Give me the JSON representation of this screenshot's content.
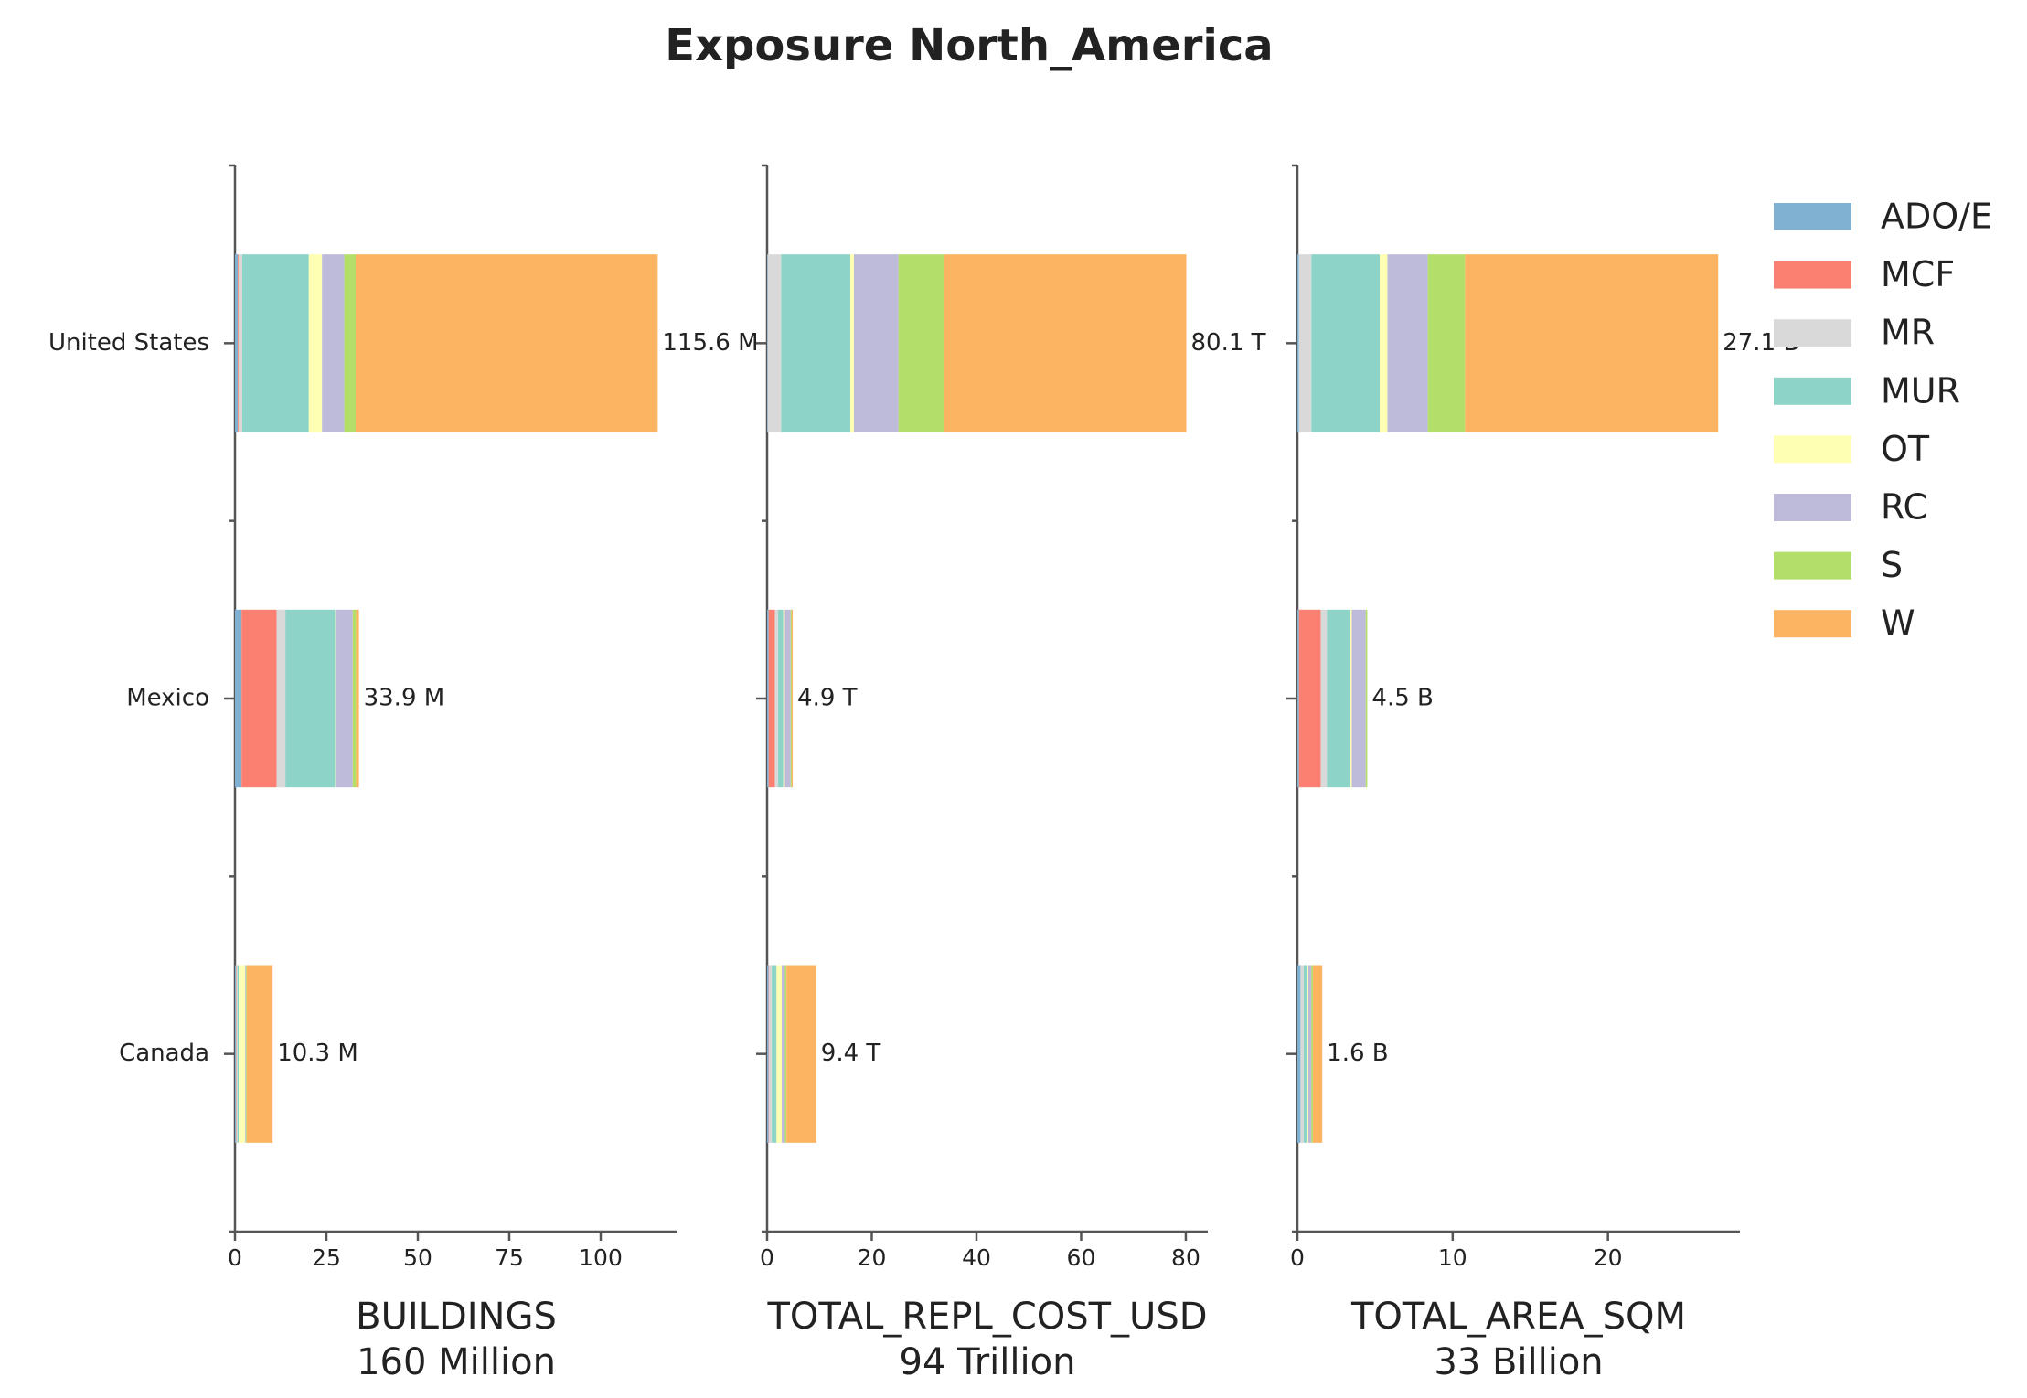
{
  "title": "Exposure North_America",
  "chart_data": [
    {
      "type": "barh-stacked",
      "xlabel": "BUILDINGS",
      "xlabel_total": "160 Million",
      "categories": [
        "United States",
        "Mexico",
        "Canada"
      ],
      "series": [
        {
          "name": "ADO/E",
          "color": "#80b1d3",
          "values": [
            0.8,
            1.8,
            0.3
          ]
        },
        {
          "name": "MCF",
          "color": "#fb8072",
          "values": [
            0.2,
            9.6,
            0.1
          ]
        },
        {
          "name": "MR",
          "color": "#d9d9d9",
          "values": [
            1.0,
            2.4,
            0.3
          ]
        },
        {
          "name": "MUR",
          "color": "#8dd3c7",
          "values": [
            18.2,
            13.6,
            0.3
          ]
        },
        {
          "name": "OT",
          "color": "#ffffb3",
          "values": [
            3.6,
            0.2,
            1.8
          ]
        },
        {
          "name": "RC",
          "color": "#bebada",
          "values": [
            6.1,
            4.6,
            0.2
          ]
        },
        {
          "name": "S",
          "color": "#b3de69",
          "values": [
            3.1,
            0.9,
            0.2
          ]
        },
        {
          "name": "W",
          "color": "#fdb462",
          "values": [
            82.6,
            0.8,
            7.1
          ]
        }
      ],
      "totals": {
        "values": [
          115.6,
          33.9,
          10.3
        ],
        "value_labels": [
          "115.6 M",
          "33.9 M",
          "10.3 M"
        ]
      },
      "xlim": [
        0,
        121
      ],
      "xticks": [
        0,
        25,
        50,
        75,
        100
      ]
    },
    {
      "type": "barh-stacked",
      "xlabel": "TOTAL_REPL_COST_USD",
      "xlabel_total": "94 Trillion",
      "categories": [
        "United States",
        "Mexico",
        "Canada"
      ],
      "series": [
        {
          "values": [
            0.1,
            0.3,
            0.3
          ]
        },
        {
          "values": [
            0.0,
            1.2,
            0.1
          ]
        },
        {
          "values": [
            2.6,
            0.6,
            0.5
          ]
        },
        {
          "values": [
            13.2,
            1.0,
            0.9
          ]
        },
        {
          "values": [
            0.7,
            0.3,
            1.0
          ]
        },
        {
          "values": [
            8.5,
            1.1,
            0.6
          ]
        },
        {
          "values": [
            8.7,
            0.2,
            0.3
          ]
        },
        {
          "values": [
            46.3,
            0.2,
            5.7
          ]
        }
      ],
      "totals": {
        "values": [
          80.1,
          4.9,
          9.4
        ],
        "value_labels": [
          "80.1 T",
          "4.9 T",
          "9.4 T"
        ]
      },
      "xlim": [
        0,
        84.2
      ],
      "xticks": [
        0,
        20,
        40,
        60,
        80
      ]
    },
    {
      "type": "barh-stacked",
      "xlabel": "TOTAL_AREA_SQM",
      "xlabel_total": "33 Billion",
      "categories": [
        "United States",
        "Mexico",
        "Canada"
      ],
      "series": [
        {
          "values": [
            0.1,
            0.1,
            0.2
          ]
        },
        {
          "values": [
            0.0,
            1.4,
            0.0
          ]
        },
        {
          "values": [
            0.8,
            0.4,
            0.2
          ]
        },
        {
          "values": [
            4.4,
            1.5,
            0.2
          ]
        },
        {
          "values": [
            0.5,
            0.1,
            0.1
          ]
        },
        {
          "values": [
            2.6,
            0.9,
            0.2
          ]
        },
        {
          "values": [
            2.4,
            0.1,
            0.1
          ]
        },
        {
          "values": [
            16.3,
            0.0,
            0.6
          ]
        }
      ],
      "totals": {
        "values": [
          27.1,
          4.5,
          1.6
        ],
        "value_labels": [
          "27.1 B",
          "4.5 B",
          "1.6 B"
        ]
      },
      "xlim": [
        0,
        28.5
      ],
      "xticks": [
        0,
        10,
        20
      ]
    }
  ]
}
